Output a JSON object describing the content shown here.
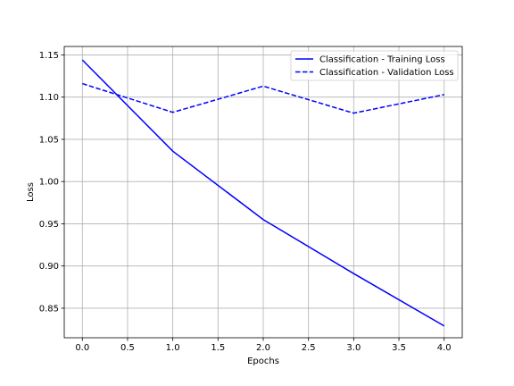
{
  "chart_data": {
    "type": "line",
    "title": "",
    "xlabel": "Epochs",
    "ylabel": "Loss",
    "xlim": [
      -0.2,
      4.2
    ],
    "ylim": [
      0.815,
      1.16
    ],
    "xticks": [
      0.0,
      0.5,
      1.0,
      1.5,
      2.0,
      2.5,
      3.0,
      3.5,
      4.0
    ],
    "xtick_labels": [
      "0.0",
      "0.5",
      "1.0",
      "1.5",
      "2.0",
      "2.5",
      "3.0",
      "3.5",
      "4.0"
    ],
    "yticks": [
      0.85,
      0.9,
      0.95,
      1.0,
      1.05,
      1.1,
      1.15
    ],
    "ytick_labels": [
      "0.85",
      "0.90",
      "0.95",
      "1.00",
      "1.05",
      "1.10",
      "1.15"
    ],
    "grid": true,
    "legend_position": "upper right",
    "x": [
      0,
      1,
      2,
      3,
      4
    ],
    "series": [
      {
        "name": "Classification - Training Loss",
        "values": [
          1.144,
          1.036,
          0.955,
          0.891,
          0.829
        ],
        "color": "#0000ff",
        "style": "solid"
      },
      {
        "name": "Classification - Validation Loss",
        "values": [
          1.116,
          1.082,
          1.113,
          1.081,
          1.103
        ],
        "color": "#0000ff",
        "style": "dashed"
      }
    ]
  }
}
